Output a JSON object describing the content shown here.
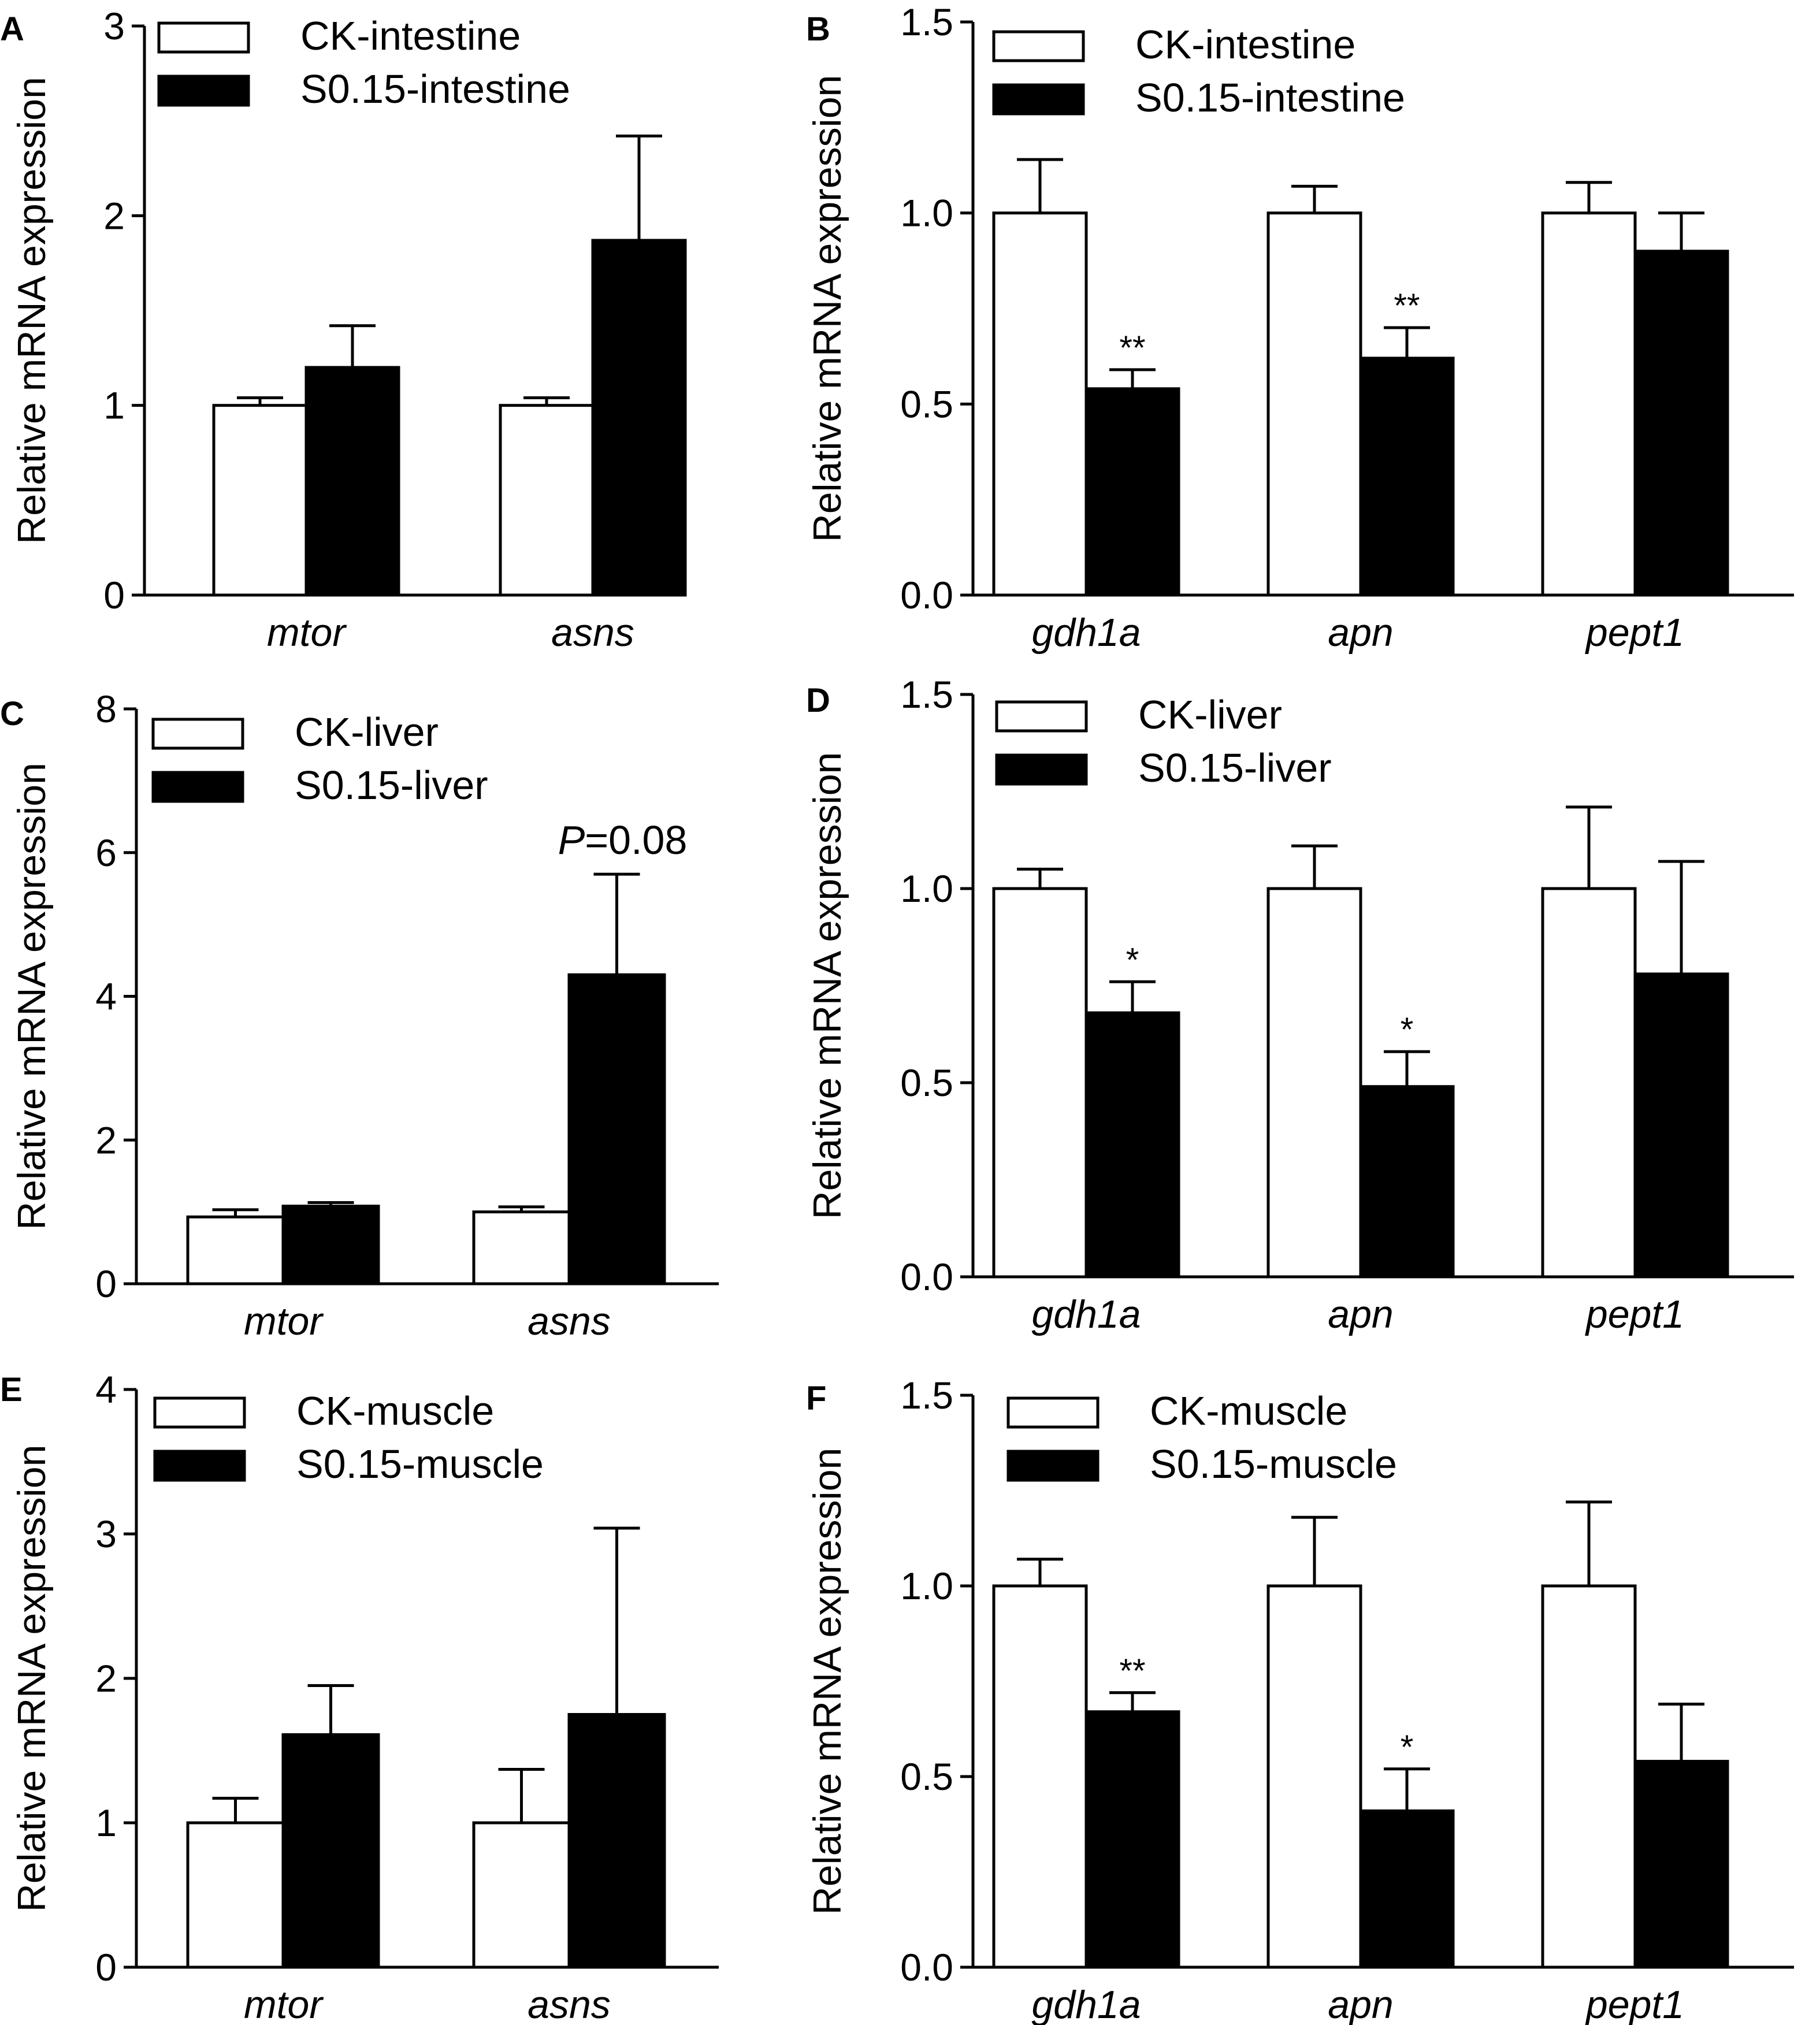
{
  "figure": {
    "ylabel": "Relative mRNA expression"
  },
  "chart_data": [
    {
      "panel": "A",
      "type": "bar",
      "title": "",
      "ylabel": "Relative mRNA expression",
      "ylim": [
        0,
        3
      ],
      "yticks": [
        0,
        1,
        2,
        3
      ],
      "ytick_labels": [
        "0",
        "1",
        "2",
        "3"
      ],
      "categories": [
        "mtor",
        "asns"
      ],
      "legend_position": "top-left",
      "series": [
        {
          "name": "CK-intestine",
          "style": "open",
          "values": [
            1.0,
            1.0
          ],
          "errors": [
            0.04,
            0.04
          ]
        },
        {
          "name": "S0.15-intestine",
          "style": "solid",
          "values": [
            1.2,
            1.87
          ],
          "errors": [
            0.22,
            0.55
          ]
        }
      ],
      "annotations": []
    },
    {
      "panel": "B",
      "type": "bar",
      "title": "",
      "ylabel": "Relative mRNA expression",
      "ylim": [
        0,
        1.5
      ],
      "yticks": [
        0,
        0.5,
        1,
        1.5
      ],
      "ytick_labels": [
        "0.0",
        "0.5",
        "1.0",
        "1.5"
      ],
      "categories": [
        "gdh1a",
        "apn",
        "pept1"
      ],
      "legend_position": "top-left",
      "series": [
        {
          "name": "CK-intestine",
          "style": "open",
          "values": [
            1.0,
            1.0,
            1.0
          ],
          "errors": [
            0.14,
            0.07,
            0.08
          ]
        },
        {
          "name": "S0.15-intestine",
          "style": "solid",
          "values": [
            0.54,
            0.62,
            0.9
          ],
          "errors": [
            0.05,
            0.08,
            0.1
          ]
        }
      ],
      "annotations": [
        {
          "category": 0,
          "series": 1,
          "text": "**"
        },
        {
          "category": 1,
          "series": 1,
          "text": "**"
        }
      ]
    },
    {
      "panel": "C",
      "type": "bar",
      "title": "",
      "ylabel": "Relative mRNA expression",
      "ylim": [
        0,
        8
      ],
      "yticks": [
        0,
        2,
        4,
        6,
        8
      ],
      "ytick_labels": [
        "0",
        "2",
        "4",
        "6",
        "8"
      ],
      "categories": [
        "mtor",
        "asns"
      ],
      "legend_position": "top-left",
      "series": [
        {
          "name": "CK-liver",
          "style": "open",
          "values": [
            0.93,
            1.0
          ],
          "errors": [
            0.1,
            0.07
          ]
        },
        {
          "name": "S0.15-liver",
          "style": "solid",
          "values": [
            1.08,
            4.3
          ],
          "errors": [
            0.05,
            1.4
          ]
        }
      ],
      "annotations": [
        {
          "category": 1,
          "series": 1,
          "text_italic": "P",
          "text": "=0.08"
        }
      ]
    },
    {
      "panel": "D",
      "type": "bar",
      "title": "",
      "ylabel": "Relative mRNA expression",
      "ylim": [
        0,
        1.5
      ],
      "yticks": [
        0,
        0.5,
        1,
        1.5
      ],
      "ytick_labels": [
        "0.0",
        "0.5",
        "1.0",
        "1.5"
      ],
      "categories": [
        "gdh1a",
        "apn",
        "pept1"
      ],
      "legend_position": "top-left",
      "series": [
        {
          "name": "CK-liver",
          "style": "open",
          "values": [
            1.0,
            1.0,
            1.0
          ],
          "errors": [
            0.05,
            0.11,
            0.21
          ]
        },
        {
          "name": "S0.15-liver",
          "style": "solid",
          "values": [
            0.68,
            0.49,
            0.78
          ],
          "errors": [
            0.08,
            0.09,
            0.29
          ]
        }
      ],
      "annotations": [
        {
          "category": 0,
          "series": 1,
          "text": "*"
        },
        {
          "category": 1,
          "series": 1,
          "text": "*"
        }
      ]
    },
    {
      "panel": "E",
      "type": "bar",
      "title": "",
      "ylabel": "Relative mRNA expression",
      "ylim": [
        0,
        4
      ],
      "yticks": [
        0,
        1,
        2,
        3,
        4
      ],
      "ytick_labels": [
        "0",
        "1",
        "2",
        "3",
        "4"
      ],
      "categories": [
        "mtor",
        "asns"
      ],
      "legend_position": "top-left",
      "series": [
        {
          "name": "CK-muscle",
          "style": "open",
          "values": [
            1.0,
            1.0
          ],
          "errors": [
            0.17,
            0.37
          ]
        },
        {
          "name": "S0.15-muscle",
          "style": "solid",
          "values": [
            1.61,
            1.75
          ],
          "errors": [
            0.34,
            1.29
          ]
        }
      ],
      "annotations": []
    },
    {
      "panel": "F",
      "type": "bar",
      "title": "",
      "ylabel": "Relative mRNA expression",
      "ylim": [
        0,
        1.5
      ],
      "yticks": [
        0,
        0.5,
        1,
        1.5
      ],
      "ytick_labels": [
        "0.0",
        "0.5",
        "1.0",
        "1.5"
      ],
      "categories": [
        "gdh1a",
        "apn",
        "pept1"
      ],
      "legend_position": "top-left",
      "series": [
        {
          "name": "CK-muscle",
          "style": "open",
          "values": [
            1.0,
            1.0,
            1.0
          ],
          "errors": [
            0.07,
            0.18,
            0.22
          ]
        },
        {
          "name": "S0.15-muscle",
          "style": "solid",
          "values": [
            0.67,
            0.41,
            0.54
          ],
          "errors": [
            0.05,
            0.11,
            0.15
          ]
        }
      ],
      "annotations": [
        {
          "category": 0,
          "series": 1,
          "text": "**"
        },
        {
          "category": 1,
          "series": 1,
          "text": "*"
        }
      ]
    }
  ]
}
